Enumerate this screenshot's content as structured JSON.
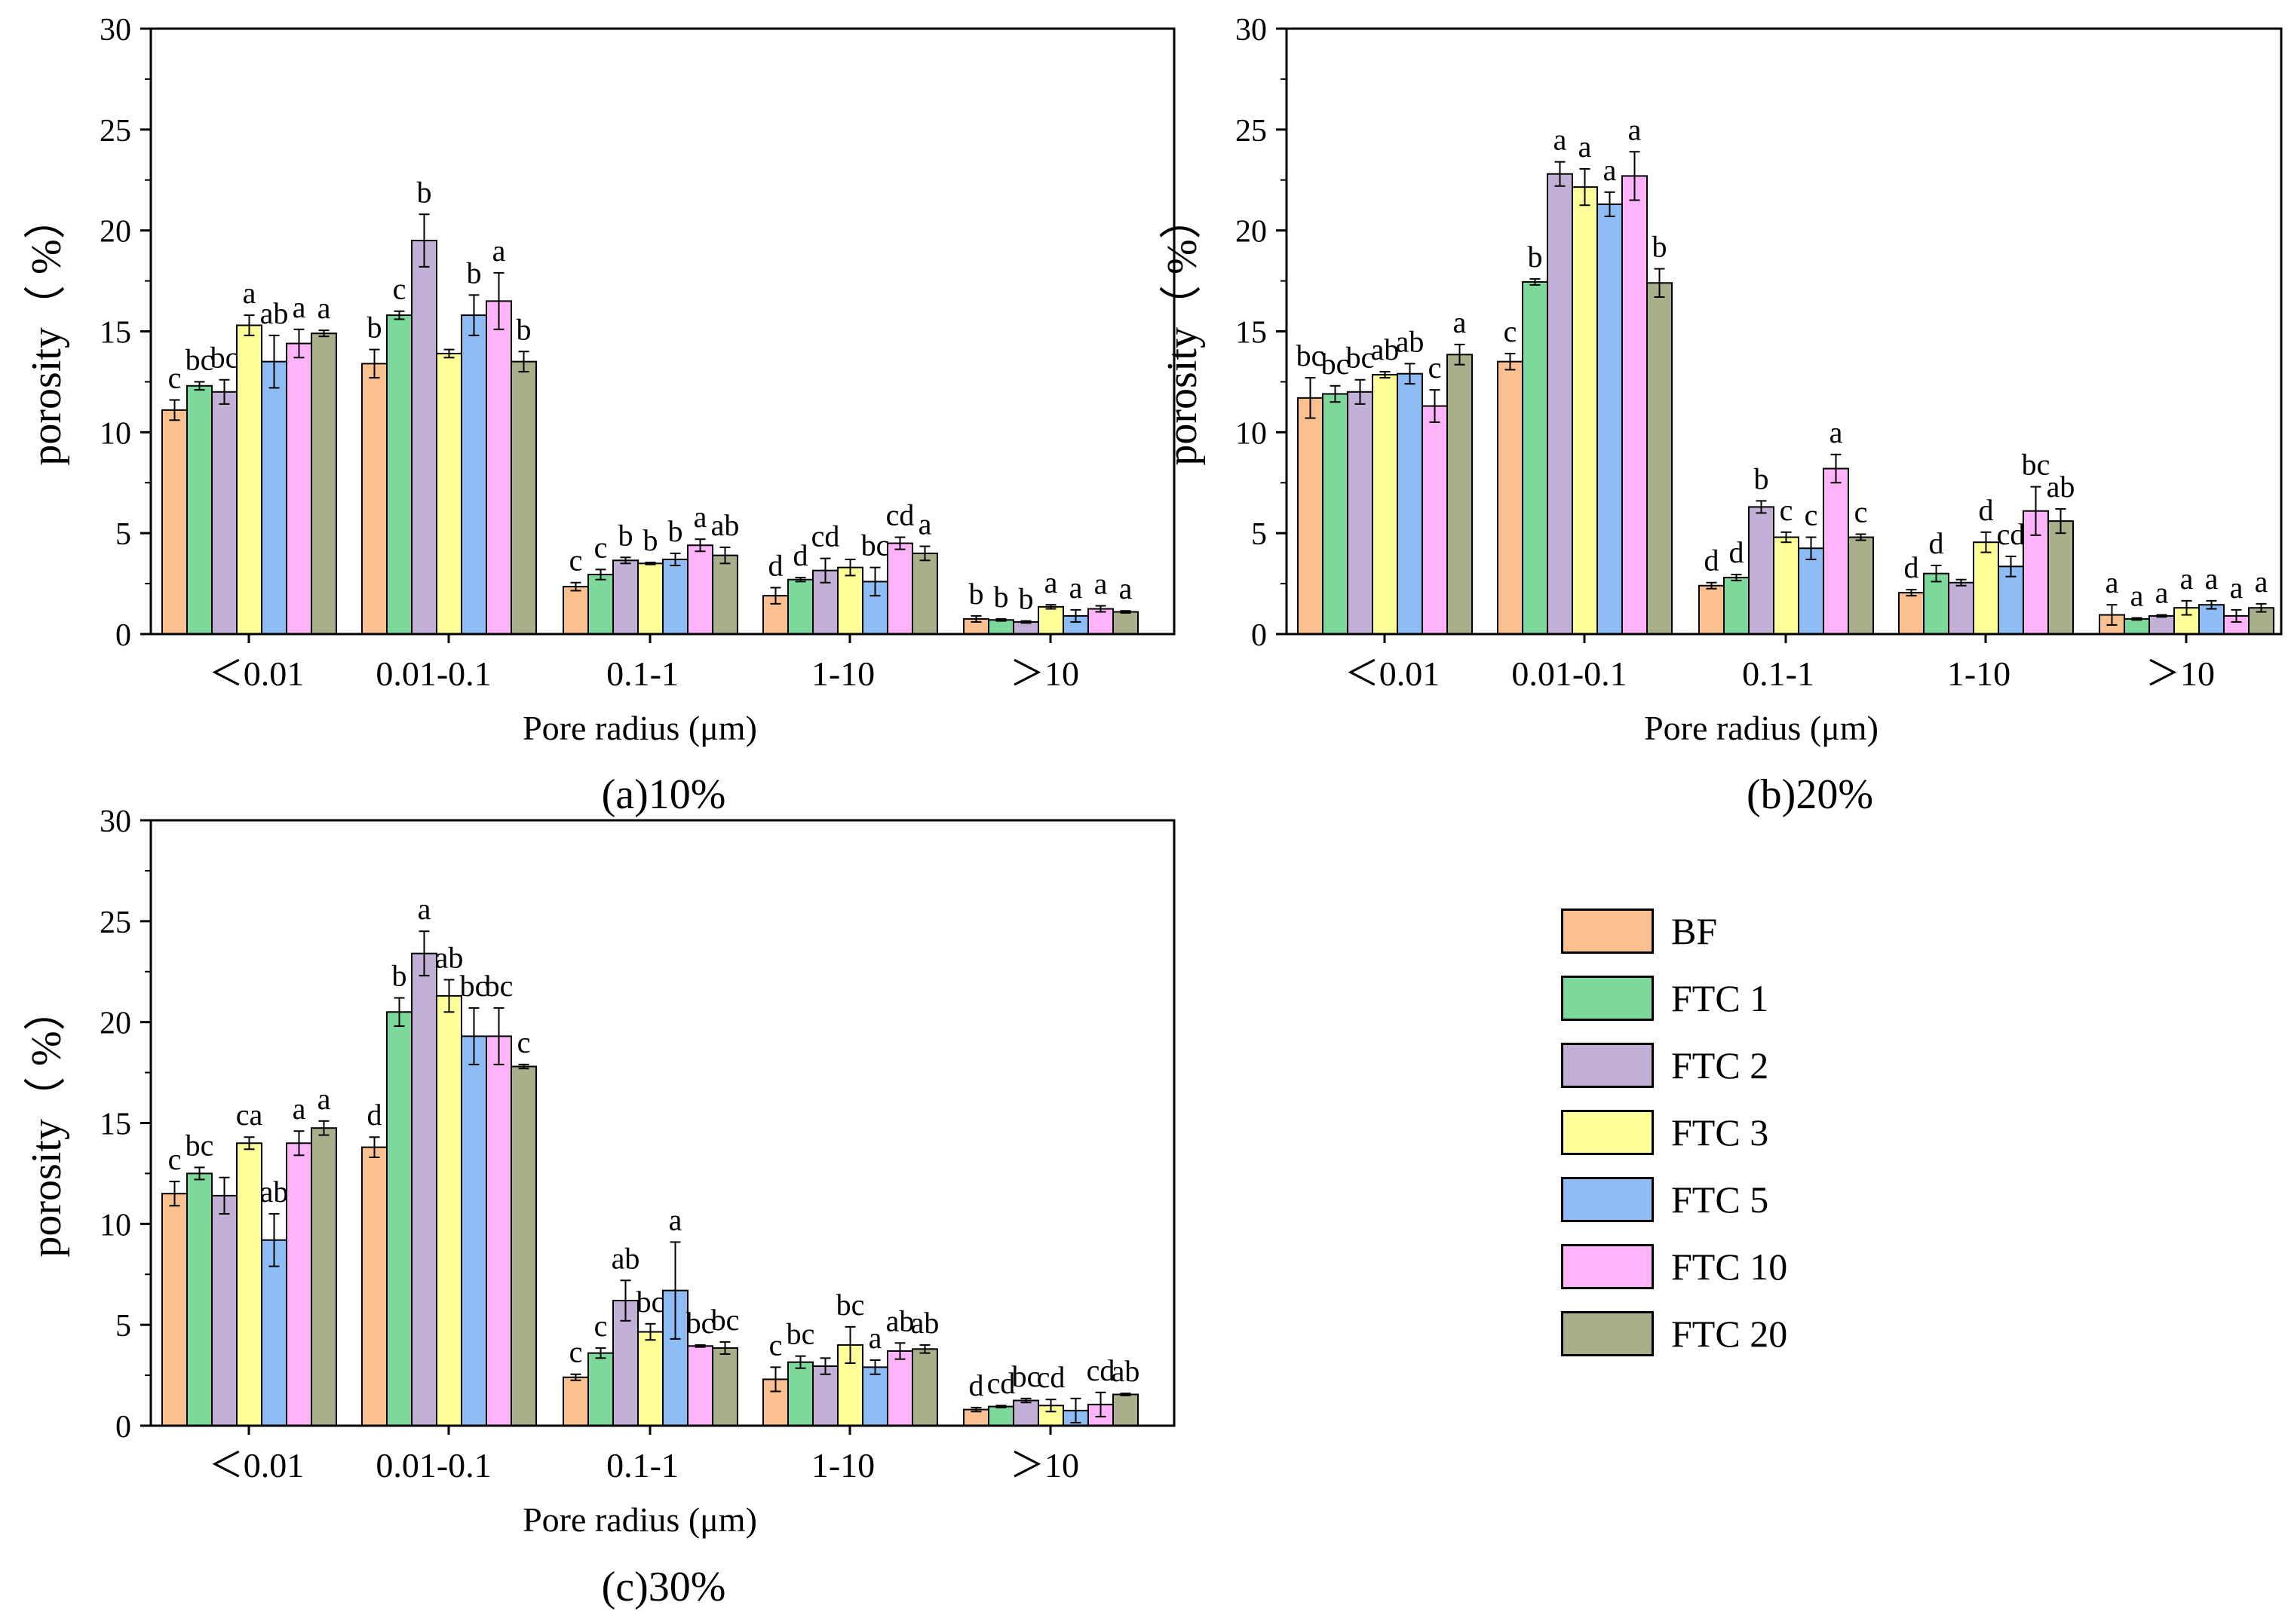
{
  "legend": [
    {
      "label": "BF",
      "color": "#FAC08F"
    },
    {
      "label": "FTC 1",
      "color": "#7DD89B"
    },
    {
      "label": "FTC 2",
      "color": "#C3B0D6"
    },
    {
      "label": "FTC 3",
      "color": "#FFFF9A"
    },
    {
      "label": "FTC 5",
      "color": "#8EBDF5"
    },
    {
      "label": "FTC 10",
      "color": "#FFB3F8"
    },
    {
      "label": "FTC 20",
      "color": "#A9AF8A"
    }
  ],
  "chart_data": [
    {
      "type": "bar",
      "caption": "(a)10%",
      "xlabel": "Pore radius (μm)",
      "ylabel": "porosity（ %）",
      "ylim": [
        0,
        30
      ],
      "yticks": [
        0,
        5,
        10,
        15,
        20,
        25,
        30
      ],
      "categories": [
        "＜0.01",
        "0.01-0.1",
        "0.1-1",
        "1-10",
        "＞10"
      ],
      "series": [
        {
          "name": "BF",
          "values": [
            11.1,
            13.4,
            2.35,
            1.9,
            0.75
          ],
          "errors": [
            0.5,
            0.7,
            0.2,
            0.4,
            0.15
          ],
          "letters": [
            "c",
            "b",
            "c",
            "d",
            "b"
          ]
        },
        {
          "name": "FTC 1",
          "values": [
            12.3,
            15.8,
            2.95,
            2.7,
            0.7
          ],
          "errors": [
            0.2,
            0.2,
            0.25,
            0.1,
            0.05
          ],
          "letters": [
            "bc",
            "c",
            "c",
            "d",
            "b"
          ]
        },
        {
          "name": "FTC 2",
          "values": [
            12.0,
            19.5,
            3.65,
            3.15,
            0.6
          ],
          "errors": [
            0.6,
            1.3,
            0.15,
            0.6,
            0.05
          ],
          "letters": [
            "bc",
            "b",
            "b",
            "cd",
            "b"
          ]
        },
        {
          "name": "FTC 3",
          "values": [
            15.3,
            13.9,
            3.5,
            3.3,
            1.35
          ],
          "errors": [
            0.5,
            0.2,
            0.05,
            0.4,
            0.1
          ],
          "letters": [
            "a",
            "",
            "b",
            "",
            "a"
          ]
        },
        {
          "name": "FTC 5",
          "values": [
            13.5,
            15.8,
            3.7,
            2.6,
            0.9
          ],
          "errors": [
            1.3,
            1.0,
            0.3,
            0.7,
            0.3
          ],
          "letters": [
            "ab",
            "b",
            "b",
            "bc",
            "a"
          ]
        },
        {
          "name": "FTC 10",
          "values": [
            14.4,
            16.5,
            4.4,
            4.5,
            1.25
          ],
          "errors": [
            0.7,
            1.4,
            0.3,
            0.3,
            0.15
          ],
          "letters": [
            "a",
            "a",
            "a",
            "cd",
            "a"
          ]
        },
        {
          "name": "FTC 20",
          "values": [
            14.9,
            13.5,
            3.9,
            4.0,
            1.1
          ],
          "errors": [
            0.15,
            0.5,
            0.4,
            0.35,
            0.05
          ],
          "letters": [
            "a",
            "b",
            "ab",
            "a",
            "a"
          ]
        }
      ]
    },
    {
      "type": "bar",
      "caption": "(b)20%",
      "xlabel": "Pore radius (μm)",
      "ylabel": "porosity（ %）",
      "ylim": [
        0,
        30
      ],
      "yticks": [
        0,
        5,
        10,
        15,
        20,
        25,
        30
      ],
      "categories": [
        "＜0.01",
        "0.01-0.1",
        "0.1-1",
        "1-10",
        "＞10"
      ],
      "series": [
        {
          "name": "BF",
          "values": [
            11.7,
            13.5,
            2.4,
            2.05,
            0.95
          ],
          "errors": [
            1.0,
            0.4,
            0.15,
            0.15,
            0.5
          ],
          "letters": [
            "bc",
            "c",
            "d",
            "d",
            "a"
          ]
        },
        {
          "name": "FTC 1",
          "values": [
            11.9,
            17.45,
            2.8,
            3.0,
            0.75
          ],
          "errors": [
            0.4,
            0.15,
            0.15,
            0.4,
            0.05
          ],
          "letters": [
            "bc",
            "b",
            "d",
            "d",
            "a"
          ]
        },
        {
          "name": "FTC 2",
          "values": [
            12.0,
            22.8,
            6.3,
            2.55,
            0.9
          ],
          "errors": [
            0.6,
            0.6,
            0.3,
            0.15,
            0.05
          ],
          "letters": [
            "bc",
            "a",
            "b",
            "",
            "a"
          ]
        },
        {
          "name": "FTC 3",
          "values": [
            12.85,
            22.15,
            4.8,
            4.55,
            1.3
          ],
          "errors": [
            0.15,
            0.9,
            0.25,
            0.5,
            0.35
          ],
          "letters": [
            "ab",
            "a",
            "c",
            "d",
            "a"
          ]
        },
        {
          "name": "FTC 5",
          "values": [
            12.9,
            21.3,
            4.25,
            3.35,
            1.45
          ],
          "errors": [
            0.5,
            0.6,
            0.55,
            0.5,
            0.2
          ],
          "letters": [
            "ab",
            "a",
            "c",
            "cd",
            "a"
          ]
        },
        {
          "name": "FTC 10",
          "values": [
            11.3,
            22.7,
            8.2,
            6.1,
            0.9
          ],
          "errors": [
            0.8,
            1.2,
            0.7,
            1.2,
            0.3
          ],
          "letters": [
            "c",
            "a",
            "a",
            "bc",
            "a"
          ]
        },
        {
          "name": "FTC 20",
          "values": [
            13.85,
            17.4,
            4.8,
            5.6,
            1.3
          ],
          "errors": [
            0.5,
            0.7,
            0.15,
            0.6,
            0.2
          ],
          "letters": [
            "a",
            "b",
            "c",
            "ab",
            "a"
          ]
        }
      ]
    },
    {
      "type": "bar",
      "caption": "(c)30%",
      "xlabel": "Pore radius (μm)",
      "ylabel": "porosity（ %）",
      "ylim": [
        0,
        30
      ],
      "yticks": [
        0,
        5,
        10,
        15,
        20,
        25,
        30
      ],
      "categories": [
        "＜0.01",
        "0.01-0.1",
        "0.1-1",
        "1-10",
        "＞10"
      ],
      "series": [
        {
          "name": "BF",
          "values": [
            11.5,
            13.8,
            2.4,
            2.3,
            0.8
          ],
          "errors": [
            0.6,
            0.5,
            0.15,
            0.6,
            0.1
          ],
          "letters": [
            "c",
            "d",
            "c",
            "c",
            "d"
          ]
        },
        {
          "name": "FTC 1",
          "values": [
            12.5,
            20.5,
            3.6,
            3.15,
            0.95
          ],
          "errors": [
            0.3,
            0.7,
            0.25,
            0.3,
            0.05
          ],
          "letters": [
            "bc",
            "b",
            "c",
            "bc",
            "cd"
          ]
        },
        {
          "name": "FTC 2",
          "values": [
            11.4,
            23.4,
            6.2,
            2.95,
            1.25
          ],
          "errors": [
            0.9,
            1.1,
            1.0,
            0.4,
            0.1
          ],
          "letters": [
            "",
            "a",
            "ab",
            "",
            "bc"
          ]
        },
        {
          "name": "FTC 3",
          "values": [
            14.0,
            21.3,
            4.65,
            4.0,
            1.0
          ],
          "errors": [
            0.3,
            0.8,
            0.4,
            0.9,
            0.3
          ],
          "letters": [
            "ca",
            "ab",
            "bc",
            "bc",
            "cd"
          ]
        },
        {
          "name": "FTC 5",
          "values": [
            9.2,
            19.3,
            6.7,
            2.9,
            0.75
          ],
          "errors": [
            1.3,
            1.4,
            2.4,
            0.35,
            0.6
          ],
          "letters": [
            "ab",
            "bc",
            "a",
            "a",
            ""
          ]
        },
        {
          "name": "FTC 10",
          "values": [
            14.0,
            19.3,
            3.95,
            3.7,
            1.05
          ],
          "errors": [
            0.6,
            1.4,
            0.05,
            0.4,
            0.6
          ],
          "letters": [
            "a",
            "bc",
            "bc",
            "ab",
            "cd"
          ]
        },
        {
          "name": "FTC 20",
          "values": [
            14.75,
            17.8,
            3.85,
            3.8,
            1.55
          ],
          "errors": [
            0.35,
            0.1,
            0.3,
            0.2,
            0.05
          ],
          "letters": [
            "a",
            "c",
            "bc",
            "ab",
            "ab"
          ]
        }
      ]
    }
  ]
}
